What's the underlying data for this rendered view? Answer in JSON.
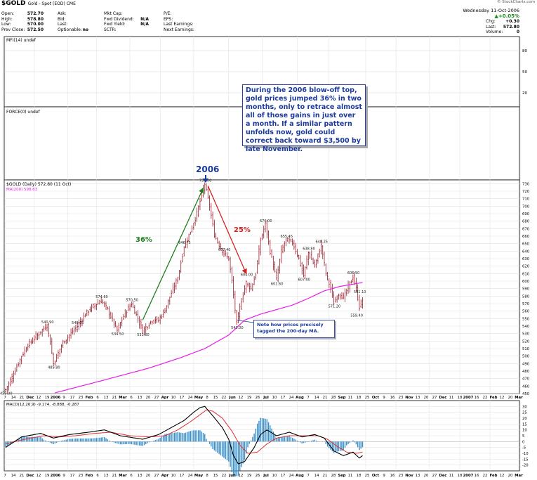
{
  "header": {
    "symbol": "$GOLD",
    "symbol_sub": "Gold - Spot (EOD) CME",
    "watermark": "© StockCharts.com",
    "date_line": "Wednesday 11-Oct-2006",
    "change_pct": "▲+0.05%",
    "col1": [
      {
        "k": "Open:",
        "v": "572.70"
      },
      {
        "k": "High:",
        "v": "578.80"
      },
      {
        "k": "Low:",
        "v": "570.00"
      },
      {
        "k": "Prev Close:",
        "v": "572.50"
      }
    ],
    "col2": [
      {
        "k": "Ask:",
        "v": ""
      },
      {
        "k": "Bid:",
        "v": ""
      },
      {
        "k": "Last:",
        "v": ""
      },
      {
        "k": "Optionable:",
        "v": "no"
      }
    ],
    "col3": [
      {
        "k": "Mkt Cap:",
        "v": ""
      },
      {
        "k": "Fwd Dividend:",
        "v": "N/A"
      },
      {
        "k": "Fwd Yield:",
        "v": "N/A"
      },
      {
        "k": "SCTR:",
        "v": ""
      }
    ],
    "col4": [
      {
        "k": "P/E:",
        "v": ""
      },
      {
        "k": "EPS:",
        "v": ""
      },
      {
        "k": "Last Earnings:",
        "v": ""
      },
      {
        "k": "Next Earnings:",
        "v": ""
      }
    ],
    "col5": [
      {
        "k": "Chg:",
        "v": "+0.30"
      },
      {
        "k": "Last:",
        "v": "572.80"
      },
      {
        "k": "Volume:",
        "v": "0"
      }
    ]
  },
  "annotations": {
    "callout": "During the 2006 blow-off top, gold prices jumped 36% in two months, only to retrace almost all of those gains in just over a month. If a similar pattern unfolds now, gold could correct back toward $3,500 by late November.",
    "year_label": "2006",
    "rise_label": "36%",
    "drop_label": "25%",
    "tag_note": "Note how prices precisely tagged the 200-day MA."
  },
  "colors": {
    "price_bars": "#9b1c2a",
    "ma200": "#e61ee6",
    "rise_arrow": "#1e7d1e",
    "drop_arrow": "#d62222",
    "callout_text": "#1a3a9e",
    "macd_line": "#000000",
    "macd_signal": "#e03131",
    "macd_histogram": "#3a8fc8"
  },
  "chart_data": [
    {
      "panel": "mfi",
      "type": "line",
      "title": "MFI(14) undef",
      "y_ticks": [
        80,
        50,
        20
      ]
    },
    {
      "panel": "force",
      "type": "line",
      "title": "FORCE(0) undef"
    },
    {
      "panel": "price",
      "type": "ohlc",
      "title": "$GOLD (Daily) 572.80 (11 Oct)",
      "ma_label": "MA(200) 598.63",
      "ylim": [
        450,
        735
      ],
      "y_ticks": [
        730,
        720,
        710,
        700,
        690,
        680,
        670,
        660,
        650,
        640,
        630,
        620,
        610,
        600,
        590,
        580,
        570,
        560,
        550,
        540,
        530,
        520,
        510,
        500,
        490,
        480,
        470,
        460,
        450
      ],
      "x_tick_labels": [
        "7",
        "14",
        "21",
        "Dec",
        "12",
        "19",
        "2006",
        "9",
        "17",
        "23",
        "Feb",
        "6",
        "13",
        "21",
        "Mar",
        "6",
        "13",
        "20",
        "27",
        "Apr",
        "10",
        "17",
        "24",
        "May",
        "8",
        "15",
        "22",
        "Jun",
        "12",
        "19",
        "26",
        "Jul",
        "10",
        "17",
        "24",
        "Aug",
        "7",
        "14",
        "21",
        "28",
        "Sep",
        "11",
        "18",
        "25",
        "Oct",
        "9",
        "16",
        "23",
        "Nov",
        "13",
        "20",
        "27",
        "Dec",
        "11",
        "18",
        "2007",
        "16",
        "22",
        "Feb",
        "12",
        "20",
        "Mar"
      ],
      "price_labels": [
        {
          "text": "455.00",
          "i": 0,
          "v": 455
        },
        {
          "text": "540.90",
          "i": 26,
          "v": 540.9
        },
        {
          "text": "489.80",
          "i": 30,
          "v": 489.8
        },
        {
          "text": "540.00",
          "i": 45,
          "v": 540
        },
        {
          "text": "574.60",
          "i": 60,
          "v": 574.6
        },
        {
          "text": "534.50",
          "i": 70,
          "v": 534.5
        },
        {
          "text": "570.50",
          "i": 79,
          "v": 570.5
        },
        {
          "text": "533.60",
          "i": 86,
          "v": 533.6
        },
        {
          "text": "646.75",
          "i": 112,
          "v": 646.75
        },
        {
          "text": "730.00",
          "i": 125,
          "v": 730
        },
        {
          "text": "637.40",
          "i": 137,
          "v": 637.4
        },
        {
          "text": "543.00",
          "i": 145,
          "v": 543
        },
        {
          "text": "604.00",
          "i": 151,
          "v": 604
        },
        {
          "text": "676.00",
          "i": 163,
          "v": 676
        },
        {
          "text": "601.60",
          "i": 170,
          "v": 601.6
        },
        {
          "text": "655.45",
          "i": 176,
          "v": 655.45
        },
        {
          "text": "607.00",
          "i": 187,
          "v": 607
        },
        {
          "text": "638.80",
          "i": 190,
          "v": 638.8
        },
        {
          "text": "648.25",
          "i": 198,
          "v": 648.25
        },
        {
          "text": "571.20",
          "i": 206,
          "v": 571.2
        },
        {
          "text": "606.50",
          "i": 218,
          "v": 606.5
        },
        {
          "text": "581.10",
          "i": 222,
          "v": 581.1
        },
        {
          "text": "559.40",
          "i": 220,
          "v": 559.4
        }
      ],
      "price_anchors": [
        [
          0,
          455
        ],
        [
          4,
          472
        ],
        [
          10,
          500
        ],
        [
          14,
          515
        ],
        [
          20,
          528
        ],
        [
          26,
          541
        ],
        [
          28,
          518
        ],
        [
          30,
          490
        ],
        [
          36,
          518
        ],
        [
          45,
          540
        ],
        [
          50,
          556
        ],
        [
          54,
          565
        ],
        [
          60,
          574
        ],
        [
          64,
          562
        ],
        [
          70,
          534
        ],
        [
          75,
          558
        ],
        [
          79,
          570
        ],
        [
          83,
          550
        ],
        [
          86,
          534
        ],
        [
          92,
          548
        ],
        [
          96,
          548
        ],
        [
          100,
          562
        ],
        [
          104,
          584
        ],
        [
          108,
          604
        ],
        [
          112,
          646
        ],
        [
          116,
          666
        ],
        [
          120,
          690
        ],
        [
          123,
          715
        ],
        [
          125,
          730
        ],
        [
          128,
          700
        ],
        [
          131,
          662
        ],
        [
          134,
          648
        ],
        [
          137,
          637
        ],
        [
          140,
          630
        ],
        [
          142,
          600
        ],
        [
          145,
          543
        ],
        [
          148,
          575
        ],
        [
          151,
          598
        ],
        [
          154,
          590
        ],
        [
          157,
          610
        ],
        [
          160,
          655
        ],
        [
          163,
          676
        ],
        [
          166,
          640
        ],
        [
          170,
          602
        ],
        [
          173,
          640
        ],
        [
          176,
          655
        ],
        [
          180,
          652
        ],
        [
          184,
          630
        ],
        [
          187,
          607
        ],
        [
          190,
          638
        ],
        [
          194,
          620
        ],
        [
          198,
          648
        ],
        [
          201,
          610
        ],
        [
          204,
          590
        ],
        [
          206,
          571
        ],
        [
          209,
          583
        ],
        [
          212,
          578
        ],
        [
          215,
          592
        ],
        [
          218,
          606
        ],
        [
          220,
          590
        ],
        [
          222,
          566
        ],
        [
          224,
          575
        ]
      ],
      "ma200_anchors": [
        [
          31,
          451
        ],
        [
          60,
          467
        ],
        [
          90,
          484
        ],
        [
          110,
          498
        ],
        [
          125,
          510
        ],
        [
          140,
          528
        ],
        [
          150,
          548
        ],
        [
          160,
          556
        ],
        [
          170,
          562
        ],
        [
          180,
          568
        ],
        [
          190,
          577
        ],
        [
          200,
          587
        ],
        [
          210,
          593
        ],
        [
          218,
          596
        ],
        [
          224,
          598
        ]
      ]
    },
    {
      "panel": "macd",
      "type": "line",
      "title": "MACD(12,26,9) -9.174, -8.888, -0.287",
      "ylim": [
        -25,
        35
      ],
      "y_ticks": [
        30,
        25,
        20,
        15,
        10,
        5,
        0,
        -5,
        -10,
        -15,
        -20
      ],
      "macd_anchors": [
        [
          0,
          -5
        ],
        [
          10,
          4
        ],
        [
          22,
          7
        ],
        [
          30,
          3
        ],
        [
          40,
          6
        ],
        [
          52,
          8
        ],
        [
          62,
          10
        ],
        [
          72,
          5
        ],
        [
          86,
          2
        ],
        [
          96,
          6
        ],
        [
          104,
          12
        ],
        [
          112,
          18
        ],
        [
          118,
          25
        ],
        [
          122,
          29
        ],
        [
          125,
          30
        ],
        [
          130,
          22
        ],
        [
          136,
          12
        ],
        [
          140,
          2
        ],
        [
          143,
          -12
        ],
        [
          146,
          -19
        ],
        [
          150,
          -17
        ],
        [
          156,
          -5
        ],
        [
          160,
          6
        ],
        [
          164,
          10
        ],
        [
          170,
          5
        ],
        [
          178,
          8
        ],
        [
          186,
          4
        ],
        [
          194,
          6
        ],
        [
          200,
          3
        ],
        [
          206,
          -8
        ],
        [
          212,
          -12
        ],
        [
          218,
          -9
        ],
        [
          222,
          -14
        ],
        [
          224,
          -12
        ]
      ],
      "signal_anchors": [
        [
          0,
          -2
        ],
        [
          12,
          2
        ],
        [
          24,
          5
        ],
        [
          34,
          4
        ],
        [
          44,
          5
        ],
        [
          56,
          7
        ],
        [
          66,
          8
        ],
        [
          78,
          5
        ],
        [
          90,
          4
        ],
        [
          100,
          5
        ],
        [
          108,
          10
        ],
        [
          116,
          17
        ],
        [
          122,
          23
        ],
        [
          126,
          27
        ],
        [
          130,
          26
        ],
        [
          136,
          20
        ],
        [
          142,
          9
        ],
        [
          147,
          -3
        ],
        [
          152,
          -10
        ],
        [
          158,
          -9
        ],
        [
          164,
          -2
        ],
        [
          170,
          3
        ],
        [
          178,
          5
        ],
        [
          188,
          5
        ],
        [
          196,
          5
        ],
        [
          202,
          2
        ],
        [
          208,
          -4
        ],
        [
          214,
          -9
        ],
        [
          220,
          -10
        ],
        [
          224,
          -9
        ]
      ]
    }
  ]
}
